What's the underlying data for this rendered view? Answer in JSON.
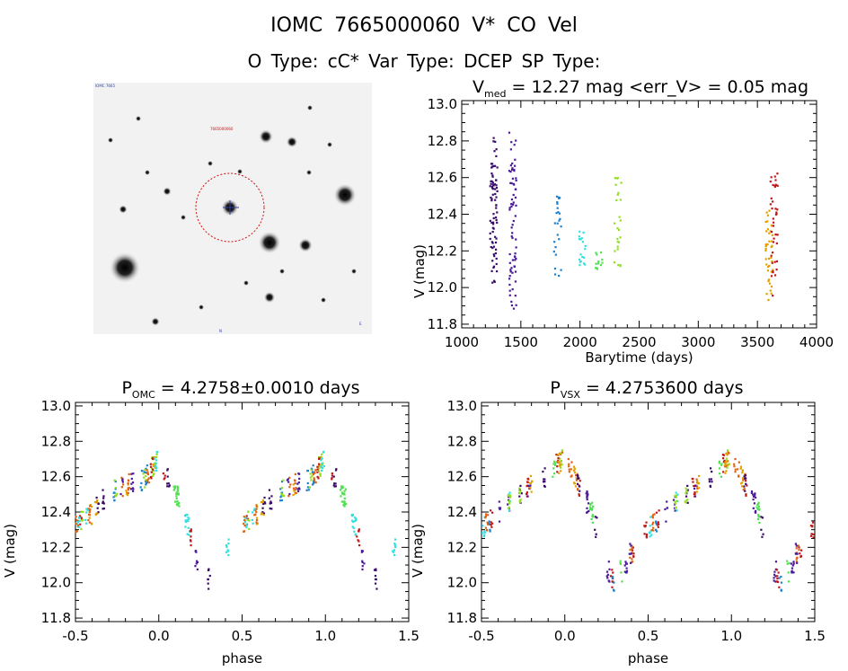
{
  "header": {
    "line1": "IOMC 7665000060    V* CO Vel",
    "line2": "O Type: cC*  Var Type: DCEP  SP Type:"
  },
  "finder": {
    "tiny_labels": [
      "IOMC 7665",
      "7665000060",
      "N",
      "E"
    ]
  },
  "colors": {
    "axes": "#000000",
    "circle": "#d01010",
    "seasons": [
      "#3a0a6a",
      "#4a1a9a",
      "#1a80d0",
      "#30e0e0",
      "#50e050",
      "#90e020",
      "#e0a000",
      "#e06010",
      "#c01818"
    ]
  },
  "chart_data": [
    {
      "id": "lightcurve",
      "type": "scatter",
      "title_main": "V",
      "title_sub": "med",
      "title_rest": " = 12.27 mag <err_V> = 0.05 mag",
      "xlabel": "Barytime (days)",
      "ylabel": "V (mag)",
      "xlim": [
        1000,
        4000
      ],
      "ylim": [
        13.02,
        11.78
      ],
      "xticks": [
        "1000",
        "1500",
        "2000",
        "2500",
        "3000",
        "3500",
        "4000"
      ],
      "yticks": [
        "11.8",
        "12.0",
        "12.2",
        "12.4",
        "12.6",
        "12.8",
        "13.0"
      ],
      "groups": [
        {
          "x": 1270,
          "ymin": 12.02,
          "ymax": 12.82,
          "color": 0,
          "n": 80
        },
        {
          "x": 1430,
          "ymin": 11.86,
          "ymax": 12.87,
          "color": 1,
          "n": 70
        },
        {
          "x": 1810,
          "ymin": 12.05,
          "ymax": 12.5,
          "color": 2,
          "n": 25
        },
        {
          "x": 2020,
          "ymin": 12.12,
          "ymax": 12.34,
          "color": 3,
          "n": 18
        },
        {
          "x": 2160,
          "ymin": 12.1,
          "ymax": 12.2,
          "color": 4,
          "n": 12
        },
        {
          "x": 2320,
          "ymin": 12.04,
          "ymax": 12.62,
          "color": 5,
          "n": 25
        },
        {
          "x": 3600,
          "ymin": 11.93,
          "ymax": 12.44,
          "color": 6,
          "n": 40
        },
        {
          "x": 3640,
          "ymin": 11.95,
          "ymax": 12.63,
          "color": 8,
          "n": 40
        }
      ]
    },
    {
      "id": "phase_omc",
      "type": "scatter",
      "title_main": "P",
      "title_sub": "OMC",
      "title_rest": " = 4.2758±0.0010 days",
      "xlabel": "phase",
      "ylabel": "V (mag)",
      "xlim": [
        -0.5,
        1.5
      ],
      "ylim": [
        13.02,
        11.78
      ],
      "xticks": [
        "-0.5",
        "0.0",
        "0.5",
        "1.0",
        "1.5"
      ],
      "yticks": [
        "11.8",
        "12.0",
        "12.2",
        "12.4",
        "12.6",
        "12.8",
        "13.0"
      ],
      "shape": [
        {
          "phase": 0.0,
          "mag": 12.7
        },
        {
          "phase": 0.05,
          "mag": 12.62
        },
        {
          "phase": 0.1,
          "mag": 12.52
        },
        {
          "phase": 0.15,
          "mag": 12.42
        },
        {
          "phase": 0.2,
          "mag": 12.25
        },
        {
          "phase": 0.25,
          "mag": 12.02
        },
        {
          "phase": 0.3,
          "mag": 12.02
        },
        {
          "phase": 0.35,
          "mag": 12.12
        },
        {
          "phase": 0.4,
          "mag": 12.2
        },
        {
          "phase": 0.45,
          "mag": 12.25
        },
        {
          "phase": 0.5,
          "mag": 12.32
        },
        {
          "phase": 0.6,
          "mag": 12.4
        },
        {
          "phase": 0.7,
          "mag": 12.5
        },
        {
          "phase": 0.8,
          "mag": 12.55
        },
        {
          "phase": 0.9,
          "mag": 12.58
        },
        {
          "phase": 1.0,
          "mag": 12.7
        }
      ]
    },
    {
      "id": "phase_vsx",
      "type": "scatter",
      "title_main": "P",
      "title_sub": "VSX",
      "title_rest": " = 4.2753600 days",
      "xlabel": "phase",
      "ylabel": "V (mag)",
      "xlim": [
        -0.5,
        1.5
      ],
      "ylim": [
        13.02,
        11.78
      ],
      "xticks": [
        "-0.5",
        "0.0",
        "0.5",
        "1.0",
        "1.5"
      ],
      "yticks": [
        "11.8",
        "12.0",
        "12.2",
        "12.4",
        "12.6",
        "12.8",
        "13.0"
      ],
      "shape": [
        {
          "phase": 0.0,
          "mag": 12.72
        },
        {
          "phase": 0.05,
          "mag": 12.62
        },
        {
          "phase": 0.1,
          "mag": 12.52
        },
        {
          "phase": 0.15,
          "mag": 12.42
        },
        {
          "phase": 0.2,
          "mag": 12.28
        },
        {
          "phase": 0.25,
          "mag": 12.08
        },
        {
          "phase": 0.3,
          "mag": 12.0
        },
        {
          "phase": 0.35,
          "mag": 12.08
        },
        {
          "phase": 0.4,
          "mag": 12.18
        },
        {
          "phase": 0.45,
          "mag": 12.25
        },
        {
          "phase": 0.5,
          "mag": 12.3
        },
        {
          "phase": 0.6,
          "mag": 12.4
        },
        {
          "phase": 0.7,
          "mag": 12.48
        },
        {
          "phase": 0.8,
          "mag": 12.56
        },
        {
          "phase": 0.9,
          "mag": 12.6
        },
        {
          "phase": 1.0,
          "mag": 12.72
        }
      ]
    }
  ]
}
